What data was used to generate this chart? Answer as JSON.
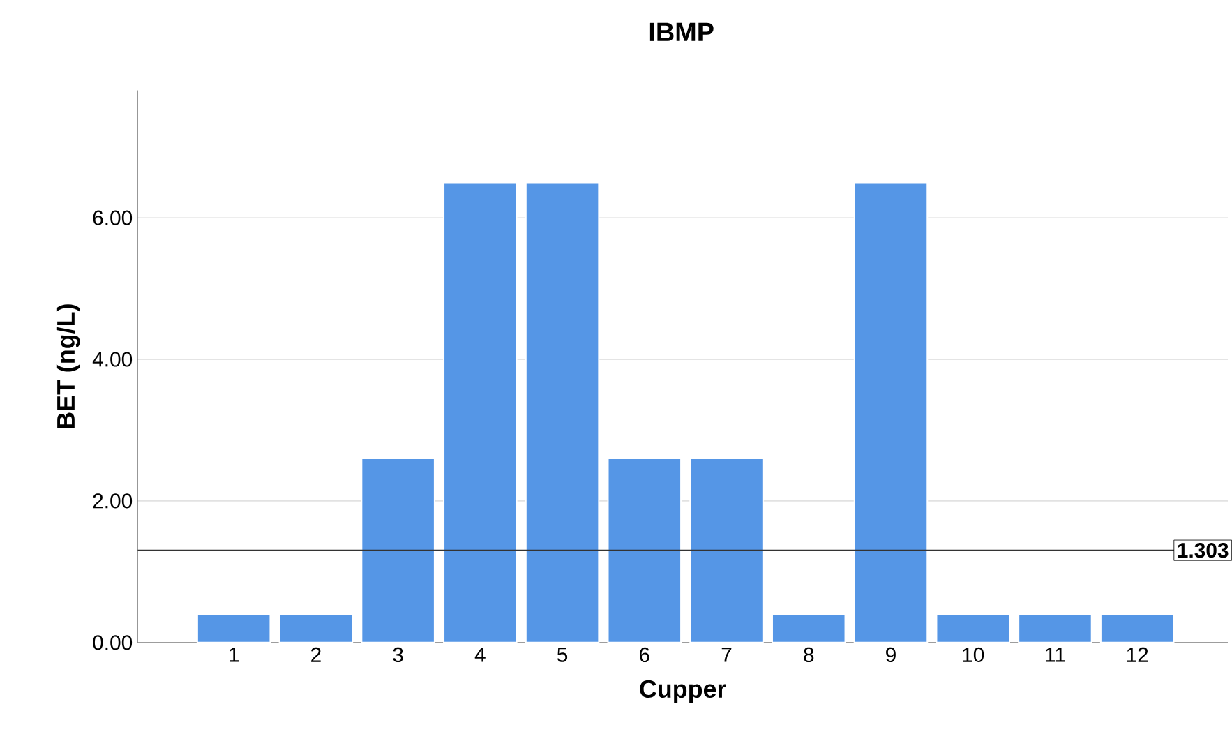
{
  "chart_data": {
    "type": "bar",
    "title": "IBMP",
    "xlabel": "Cupper",
    "ylabel": "BET (ng/L)",
    "categories": [
      "1",
      "2",
      "3",
      "4",
      "5",
      "6",
      "7",
      "8",
      "9",
      "10",
      "11",
      "12"
    ],
    "values": [
      0.4,
      0.4,
      2.6,
      6.5,
      6.5,
      2.6,
      2.6,
      0.4,
      6.5,
      0.4,
      0.4,
      0.4
    ],
    "color": "#5596e6",
    "ylim": [
      0,
      7.8
    ],
    "yticks": [
      {
        "value": 0,
        "label": "0.00"
      },
      {
        "value": 2,
        "label": "2.00"
      },
      {
        "value": 4,
        "label": "4.00"
      },
      {
        "value": 6,
        "label": "6.00"
      }
    ],
    "grid": "y",
    "ref_lines": [
      {
        "axis": "y",
        "value": 1.303,
        "label": "1.303",
        "color": "#333333"
      }
    ]
  }
}
